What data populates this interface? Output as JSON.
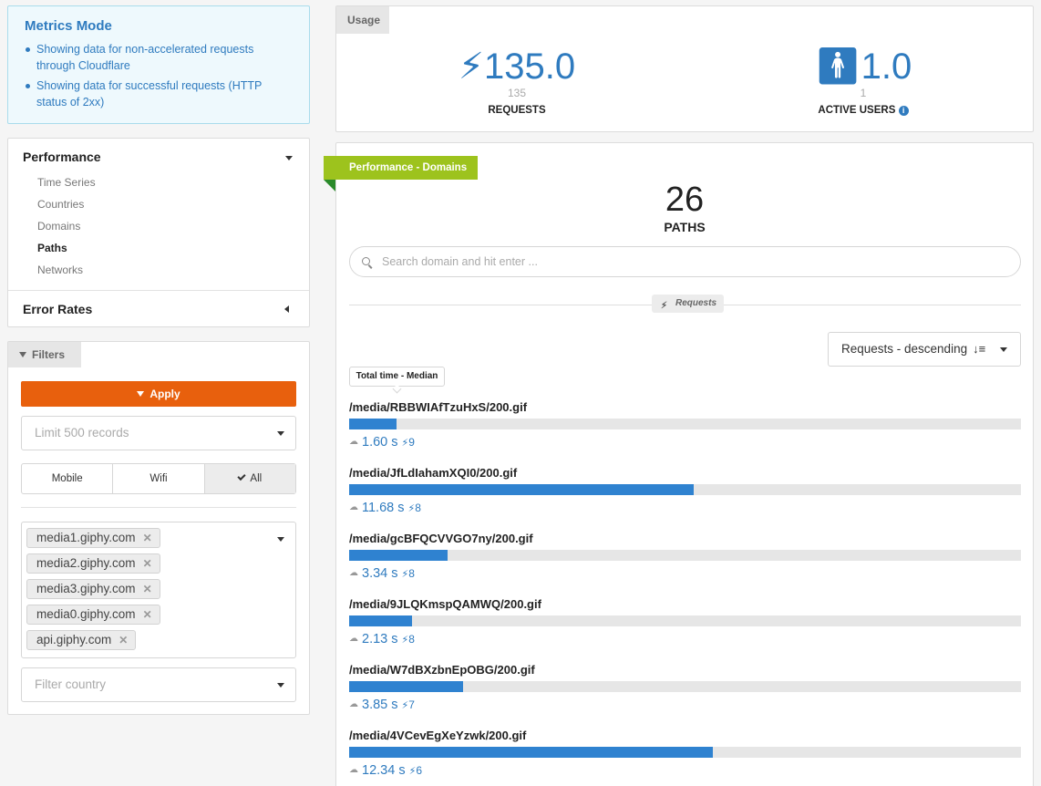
{
  "metrics_mode": {
    "title": "Metrics Mode",
    "items": [
      "Showing data for non-accelerated requests through Cloudflare",
      "Showing data for successful requests (HTTP status of 2xx)"
    ]
  },
  "nav": {
    "performance_label": "Performance",
    "performance_items": [
      {
        "label": "Time Series",
        "active": false
      },
      {
        "label": "Countries",
        "active": false
      },
      {
        "label": "Domains",
        "active": false
      },
      {
        "label": "Paths",
        "active": true
      },
      {
        "label": "Networks",
        "active": false
      }
    ],
    "error_rates_label": "Error Rates"
  },
  "filters": {
    "tab_label": "Filters",
    "apply_label": "Apply",
    "limit_placeholder": "Limit 500 records",
    "segments": [
      "Mobile",
      "Wifi",
      "All"
    ],
    "selected_segment": "All",
    "domain_tags": [
      "media1.giphy.com",
      "media2.giphy.com",
      "media3.giphy.com",
      "media0.giphy.com",
      "api.giphy.com"
    ],
    "country_placeholder": "Filter country"
  },
  "usage": {
    "tab_label": "Usage",
    "requests": {
      "big": "135.0",
      "small": "135",
      "label": "REQUESTS"
    },
    "active_users": {
      "big": "1.0",
      "small": "1",
      "label": "ACTIVE USERS"
    }
  },
  "performance": {
    "tag_label": "Performance - Domains",
    "count": "26",
    "count_label": "PATHS",
    "search_placeholder": "Search domain and hit enter ...",
    "metric_pill": "Requests",
    "sort_label": "Requests - descending",
    "tooltip": "Total time - Median",
    "max_time_s": 12.34,
    "rows": [
      {
        "path": "/media/RBBWIAfTzuHxS/200.gif",
        "time": "1.60 s",
        "time_s": 1.6,
        "requests": "9"
      },
      {
        "path": "/media/JfLdIahamXQI0/200.gif",
        "time": "11.68 s",
        "time_s": 11.68,
        "requests": "8"
      },
      {
        "path": "/media/gcBFQCVVGO7ny/200.gif",
        "time": "3.34 s",
        "time_s": 3.34,
        "requests": "8"
      },
      {
        "path": "/media/9JLQKmspQAMWQ/200.gif",
        "time": "2.13 s",
        "time_s": 2.13,
        "requests": "8"
      },
      {
        "path": "/media/W7dBXzbnEpOBG/200.gif",
        "time": "3.85 s",
        "time_s": 3.85,
        "requests": "7"
      },
      {
        "path": "/media/4VCevEgXeYzwk/200.gif",
        "time": "12.34 s",
        "time_s": 12.34,
        "requests": "6"
      }
    ]
  },
  "colors": {
    "accent": "#2f7bbf",
    "apply": "#e8600d",
    "perf_tag": "#9dc31d",
    "bar": "#2f82d0"
  }
}
